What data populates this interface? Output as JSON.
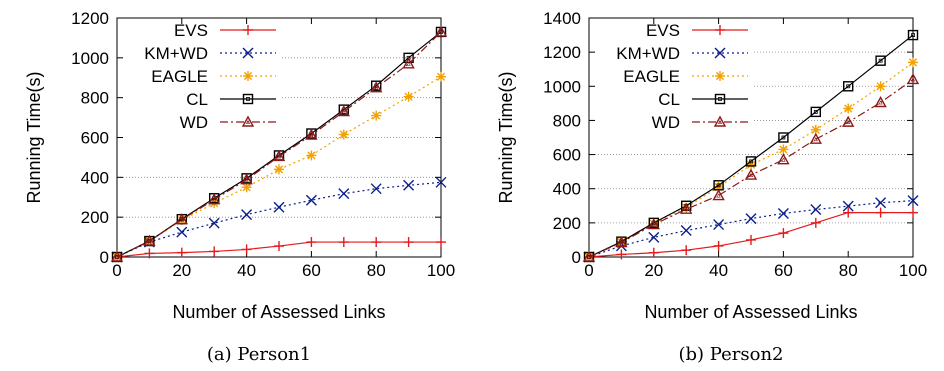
{
  "chart_data": [
    {
      "type": "line",
      "caption": "(a)  Person1",
      "xlabel": "Number of Assessed Links",
      "ylabel": "Running Time(s)",
      "xlim": [
        0,
        100
      ],
      "ylim": [
        0,
        1200
      ],
      "xticks": [
        0,
        20,
        40,
        60,
        80,
        100
      ],
      "yticks": [
        0,
        200,
        400,
        600,
        800,
        1000,
        1200
      ],
      "grid": "horizontal dotted",
      "legend_position": "top-left",
      "x": [
        0,
        10,
        20,
        30,
        40,
        50,
        60,
        70,
        80,
        90,
        100
      ],
      "series": [
        {
          "name": "EVS",
          "color": "#e41a1c",
          "marker": "plus",
          "dash": "solid",
          "values": [
            0,
            18,
            22,
            28,
            38,
            55,
            75,
            75,
            75,
            75,
            75
          ]
        },
        {
          "name": "KM+WD",
          "color": "#0a1f8c",
          "marker": "x",
          "dash": "dotted",
          "values": [
            0,
            75,
            125,
            170,
            213,
            250,
            285,
            318,
            343,
            360,
            375
          ]
        },
        {
          "name": "EAGLE",
          "color": "#f2a100",
          "marker": "asterisk",
          "dash": "dotted",
          "values": [
            0,
            80,
            185,
            270,
            350,
            440,
            510,
            615,
            710,
            805,
            905
          ]
        },
        {
          "name": "CL",
          "color": "#000000",
          "marker": "square",
          "dash": "solid",
          "values": [
            0,
            80,
            190,
            295,
            395,
            510,
            620,
            740,
            860,
            1000,
            1130
          ]
        },
        {
          "name": "WD",
          "color": "#8b1a1a",
          "marker": "triangle",
          "dash": "dashdot",
          "values": [
            0,
            80,
            188,
            288,
            388,
            505,
            612,
            730,
            850,
            970,
            1130
          ]
        }
      ]
    },
    {
      "type": "line",
      "caption": "(b)  Person2",
      "xlabel": "Number of Assessed Links",
      "ylabel": "Running Time(s)",
      "xlim": [
        0,
        100
      ],
      "ylim": [
        0,
        1400
      ],
      "xticks": [
        0,
        20,
        40,
        60,
        80,
        100
      ],
      "yticks": [
        0,
        200,
        400,
        600,
        800,
        1000,
        1200,
        1400
      ],
      "grid": "horizontal dotted",
      "legend_position": "top-left",
      "x": [
        0,
        10,
        20,
        30,
        40,
        50,
        60,
        70,
        80,
        90,
        100
      ],
      "series": [
        {
          "name": "EVS",
          "color": "#e41a1c",
          "marker": "plus",
          "dash": "solid",
          "values": [
            0,
            15,
            25,
            40,
            65,
            100,
            140,
            200,
            260,
            260,
            260
          ]
        },
        {
          "name": "KM+WD",
          "color": "#0a1f8c",
          "marker": "x",
          "dash": "dotted",
          "values": [
            0,
            65,
            115,
            155,
            190,
            225,
            255,
            278,
            298,
            318,
            330
          ]
        },
        {
          "name": "EAGLE",
          "color": "#f2a100",
          "marker": "asterisk",
          "dash": "dotted",
          "values": [
            0,
            88,
            195,
            290,
            410,
            540,
            630,
            745,
            870,
            1000,
            1140
          ]
        },
        {
          "name": "CL",
          "color": "#000000",
          "marker": "square",
          "dash": "solid",
          "values": [
            0,
            90,
            200,
            300,
            420,
            560,
            700,
            850,
            1000,
            1150,
            1300
          ]
        },
        {
          "name": "WD",
          "color": "#8b1a1a",
          "marker": "triangle",
          "dash": "dashdot",
          "values": [
            0,
            85,
            190,
            280,
            360,
            480,
            570,
            690,
            790,
            905,
            1040
          ]
        }
      ]
    }
  ]
}
